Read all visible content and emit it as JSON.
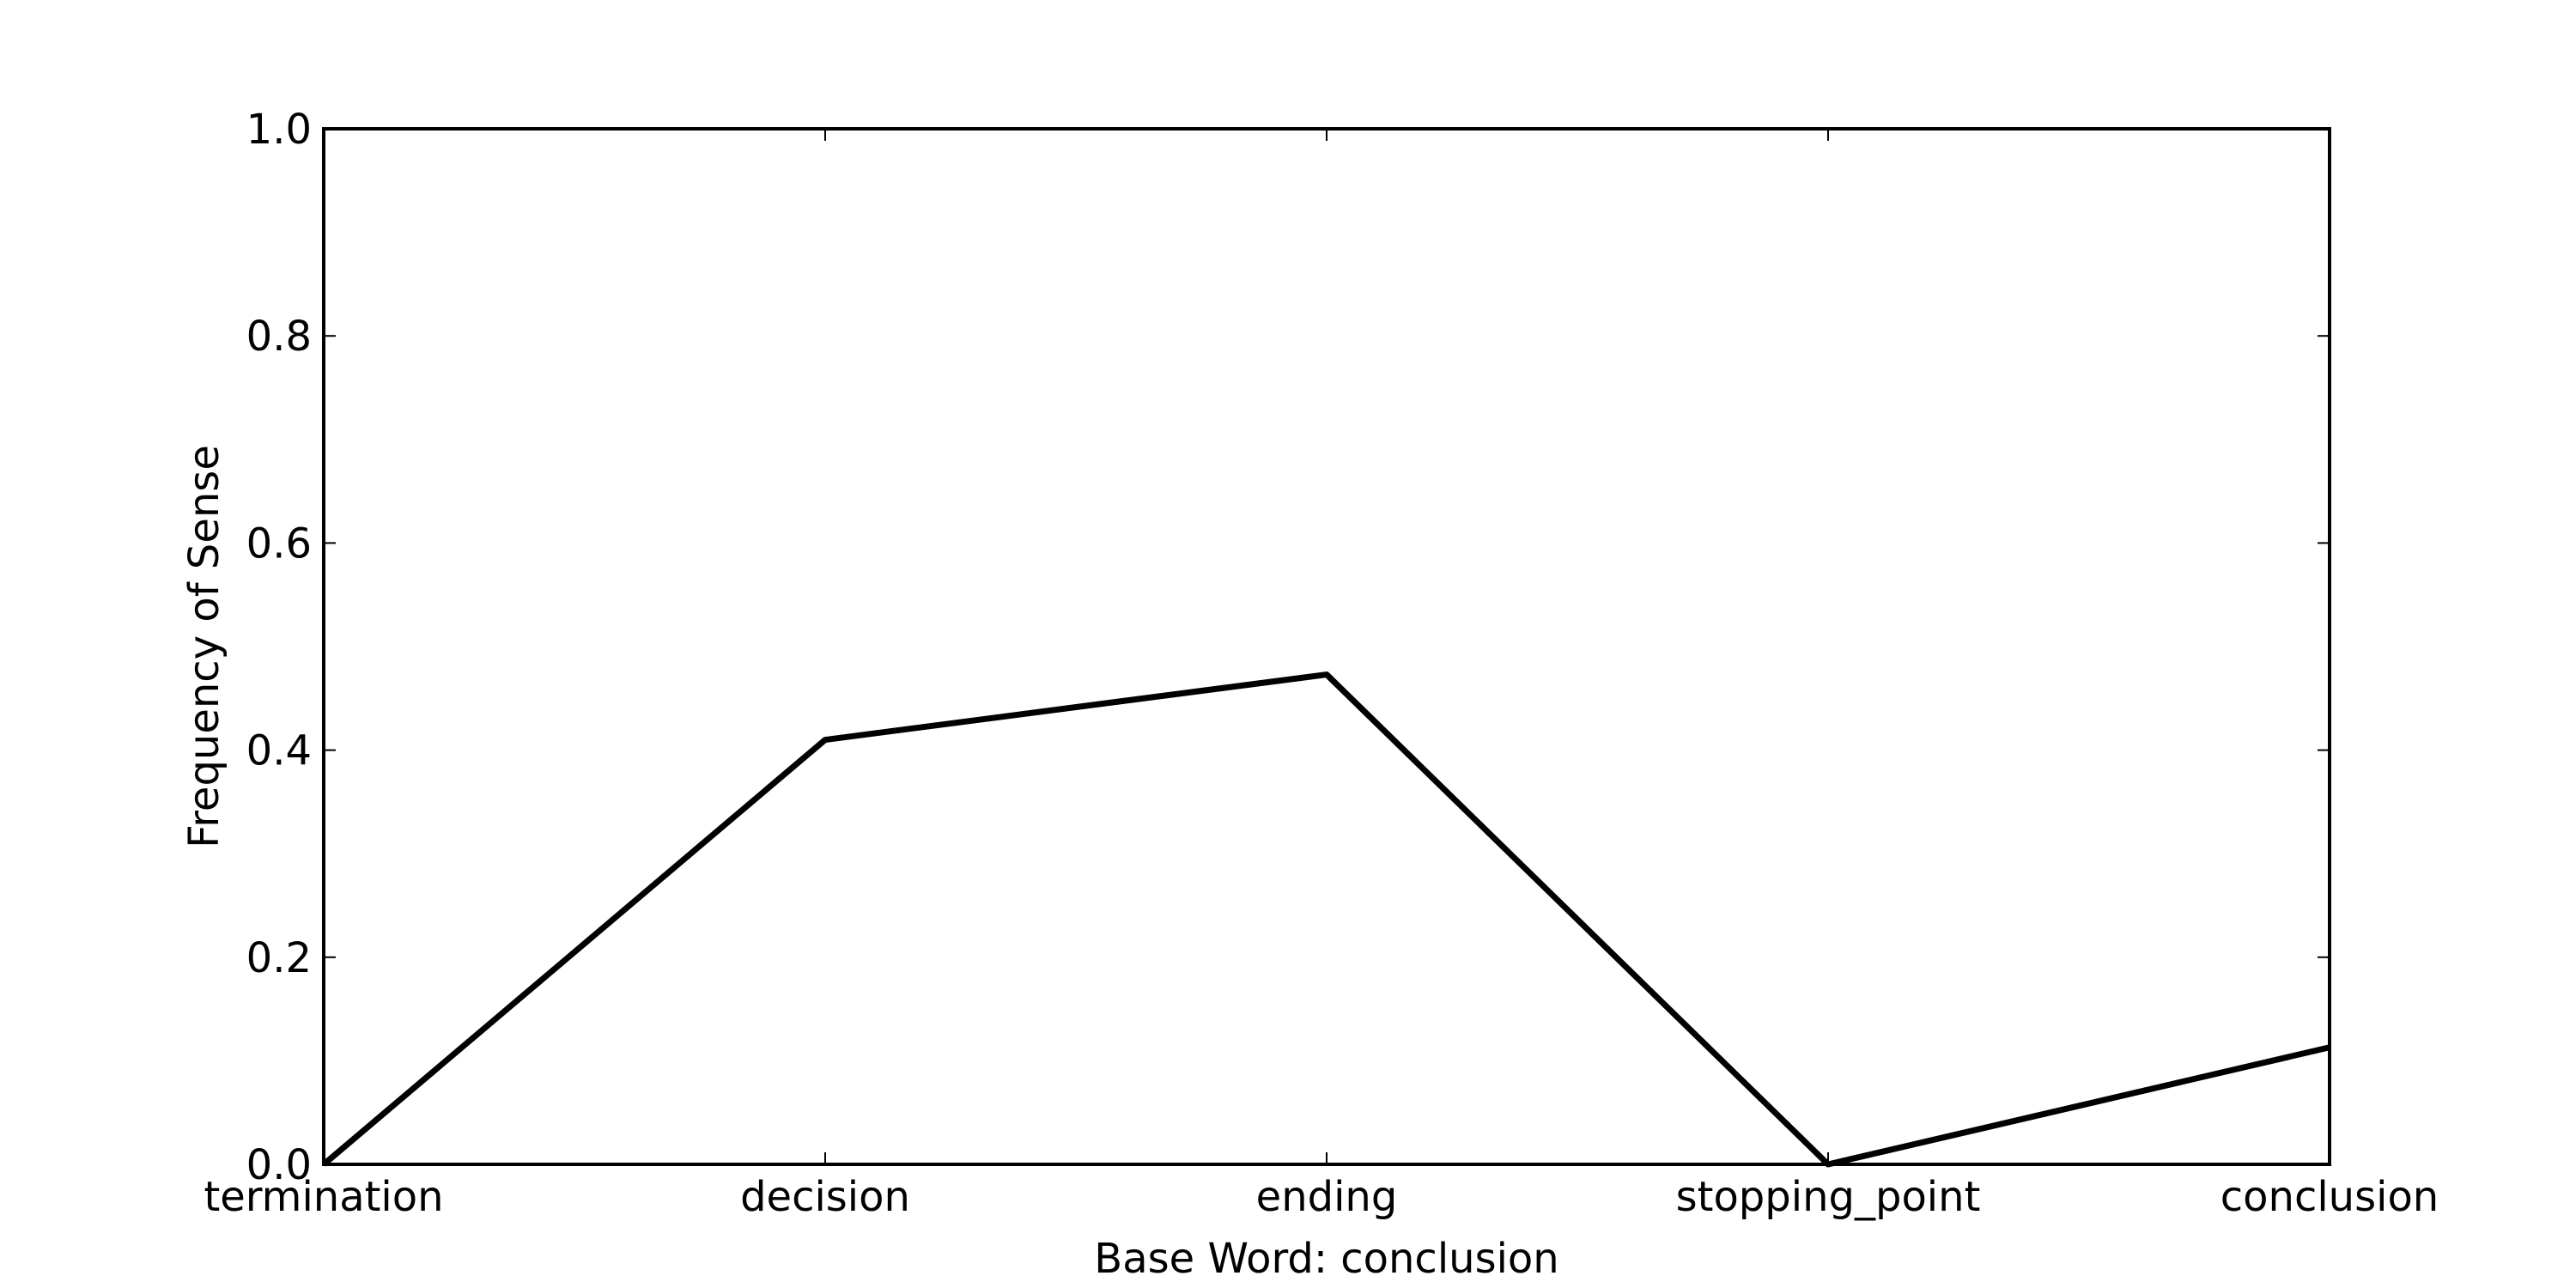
{
  "chart_data": {
    "type": "line",
    "categories": [
      "termination",
      "decision",
      "ending",
      "stopping_point",
      "conclusion"
    ],
    "series": [
      {
        "values": [
          0.0,
          0.41,
          0.473,
          0.0,
          0.113
        ]
      }
    ],
    "xlabel": "Base Word: conclusion",
    "ylabel": "Frequency of Sense",
    "ylim": [
      0.0,
      1.0
    ],
    "yticks": [
      "0.0",
      "0.2",
      "0.4",
      "0.6",
      "0.8",
      "1.0"
    ],
    "grid": false,
    "line_color": "#000000"
  }
}
